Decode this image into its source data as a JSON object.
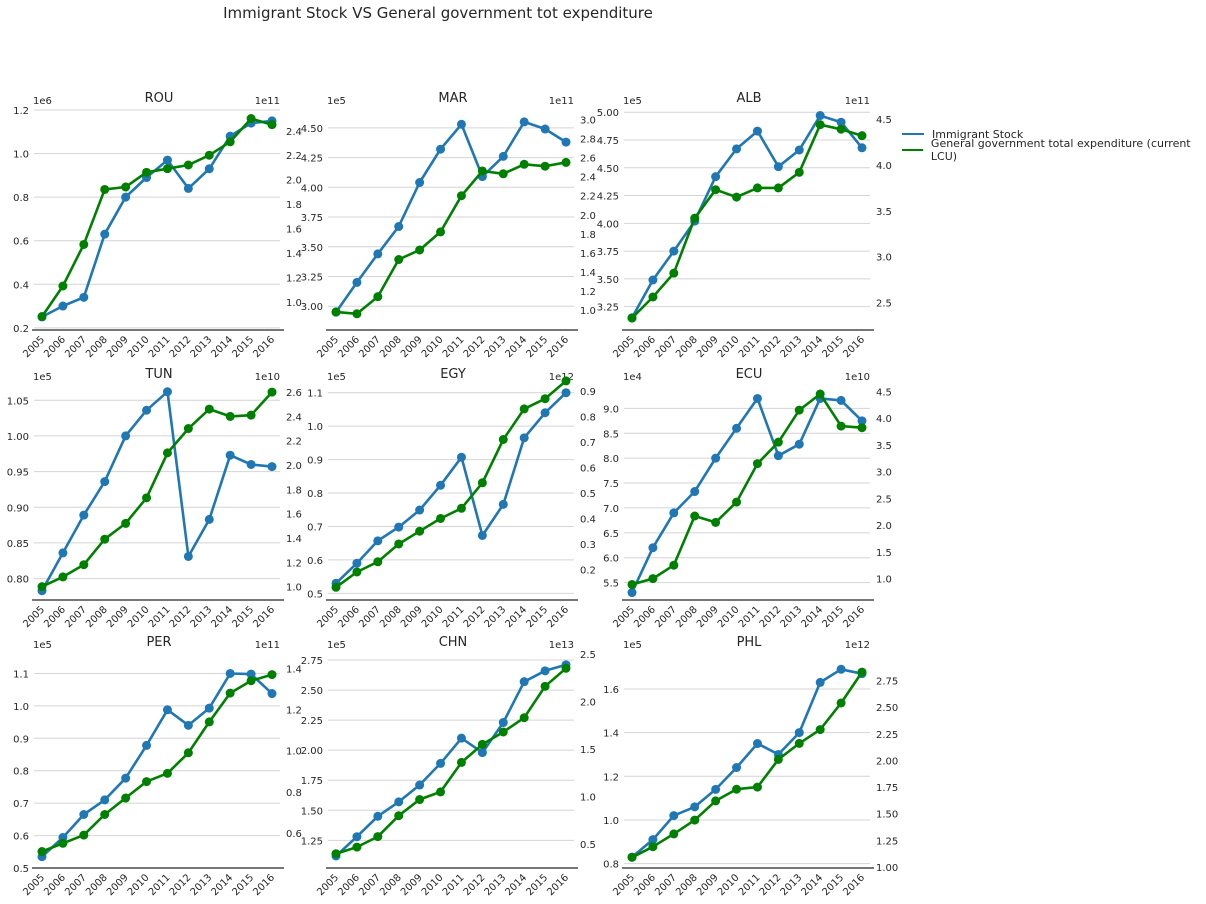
{
  "figure": {
    "title": "Immigrant Stock VS General government tot expenditure"
  },
  "legend": [
    {
      "label": "Immigrant Stock",
      "color": "#1f77b4"
    },
    {
      "label": "General government total expenditure (current LCU)",
      "color": "#008000"
    }
  ],
  "chart_data": [
    {
      "type": "line",
      "title": "ROU",
      "x": [
        2005,
        2006,
        2007,
        2008,
        2009,
        2010,
        2011,
        2012,
        2013,
        2014,
        2015,
        2016
      ],
      "left_axis": {
        "multiplier": "1e6",
        "ylim": [
          0.19,
          1.2
        ],
        "ticks": [
          "0.2",
          "0.4",
          "0.6",
          "0.8",
          "1.0",
          "1.2"
        ],
        "grid": true
      },
      "right_axis": {
        "multiplier": "1e11",
        "ylim": [
          0.77,
          2.57
        ],
        "ticks": [
          "1.0",
          "1.2",
          "1.4",
          "1.6",
          "1.8",
          "2.0",
          "2.2",
          "2.4"
        ],
        "grid": false
      },
      "series": [
        {
          "name": "Immigrant Stock",
          "axis": "left",
          "color": "#1f77b4",
          "values": [
            0.25,
            0.3,
            0.34,
            0.63,
            0.8,
            0.89,
            0.97,
            0.84,
            0.93,
            1.08,
            1.14,
            1.15
          ]
        },
        {
          "name": "General government total expenditure (current LCU)",
          "axis": "right",
          "color": "#008000",
          "values": [
            0.88,
            1.13,
            1.47,
            1.92,
            1.94,
            2.06,
            2.09,
            2.12,
            2.2,
            2.31,
            2.5,
            2.45
          ]
        }
      ]
    },
    {
      "type": "line",
      "title": "MAR",
      "x": [
        2005,
        2006,
        2007,
        2008,
        2009,
        2010,
        2011,
        2012,
        2013,
        2014,
        2015,
        2016
      ],
      "left_axis": {
        "multiplier": "1e5",
        "ylim": [
          2.8,
          4.65
        ],
        "ticks": [
          "3.00",
          "3.25",
          "3.50",
          "3.75",
          "4.00",
          "4.25",
          "4.50"
        ],
        "grid": true
      },
      "right_axis": {
        "multiplier": "1e11",
        "ylim": [
          0.79,
          3.1
        ],
        "ticks": [
          "1.0",
          "1.2",
          "1.4",
          "1.6",
          "1.8",
          "2.0",
          "2.2",
          "2.4",
          "2.6",
          "2.8",
          "3.0"
        ],
        "grid": false
      },
      "series": [
        {
          "name": "Immigrant Stock",
          "axis": "left",
          "color": "#1f77b4",
          "values": [
            2.95,
            3.2,
            3.44,
            3.67,
            4.04,
            4.32,
            4.53,
            4.09,
            4.26,
            4.55,
            4.49,
            4.38
          ]
        },
        {
          "name": "General government total expenditure (current LCU)",
          "axis": "right",
          "color": "#008000",
          "values": [
            0.98,
            0.96,
            1.14,
            1.53,
            1.63,
            1.82,
            2.2,
            2.46,
            2.43,
            2.53,
            2.51,
            2.55
          ]
        }
      ]
    },
    {
      "type": "line",
      "title": "ALB",
      "x": [
        2005,
        2006,
        2007,
        2008,
        2009,
        2010,
        2011,
        2012,
        2013,
        2014,
        2015,
        2016
      ],
      "left_axis": {
        "multiplier": "1e5",
        "ylim": [
          3.04,
          5.02
        ],
        "ticks": [
          "3.25",
          "3.50",
          "3.75",
          "4.00",
          "4.25",
          "4.50",
          "4.75",
          "5.00"
        ],
        "grid": true
      },
      "right_axis": {
        "multiplier": "1e11",
        "ylim": [
          2.2,
          4.6
        ],
        "ticks": [
          "2.5",
          "3.0",
          "3.5",
          "4.0",
          "4.5"
        ],
        "grid": false
      },
      "series": [
        {
          "name": "Immigrant Stock",
          "axis": "left",
          "color": "#1f77b4",
          "values": [
            3.15,
            3.49,
            3.75,
            4.02,
            4.42,
            4.67,
            4.83,
            4.51,
            4.66,
            4.97,
            4.91,
            4.68
          ]
        },
        {
          "name": "General government total expenditure (current LCU)",
          "axis": "right",
          "color": "#008000",
          "values": [
            2.33,
            2.56,
            2.82,
            3.42,
            3.73,
            3.65,
            3.75,
            3.75,
            3.92,
            4.44,
            4.39,
            4.32
          ]
        }
      ]
    },
    {
      "type": "line",
      "title": "TUN",
      "x": [
        2005,
        2006,
        2007,
        2008,
        2009,
        2010,
        2011,
        2012,
        2013,
        2014,
        2015,
        2016
      ],
      "left_axis": {
        "multiplier": "1e5",
        "ylim": [
          0.77,
          1.07
        ],
        "ticks": [
          "0.80",
          "0.85",
          "0.90",
          "0.95",
          "1.00",
          "1.05"
        ],
        "grid": true
      },
      "right_axis": {
        "multiplier": "1e10",
        "ylim": [
          0.89,
          2.65
        ],
        "ticks": [
          "1.0",
          "1.2",
          "1.4",
          "1.6",
          "1.8",
          "2.0",
          "2.2",
          "2.4",
          "2.6"
        ],
        "grid": false
      },
      "series": [
        {
          "name": "Immigrant Stock",
          "axis": "left",
          "color": "#1f77b4",
          "values": [
            0.783,
            0.836,
            0.889,
            0.936,
            1.0,
            1.036,
            1.062,
            0.831,
            0.883,
            0.973,
            0.96,
            0.957
          ]
        },
        {
          "name": "General government total expenditure (current LCU)",
          "axis": "right",
          "color": "#008000",
          "values": [
            1.0,
            1.08,
            1.18,
            1.39,
            1.52,
            1.73,
            2.1,
            2.3,
            2.46,
            2.4,
            2.41,
            2.6
          ]
        }
      ]
    },
    {
      "type": "line",
      "title": "EGY",
      "x": [
        2005,
        2006,
        2007,
        2008,
        2009,
        2010,
        2011,
        2012,
        2013,
        2014,
        2015,
        2016
      ],
      "left_axis": {
        "multiplier": "1e5",
        "ylim": [
          0.48,
          1.12
        ],
        "ticks": [
          "0.5",
          "0.6",
          "0.7",
          "0.8",
          "0.9",
          "1.0",
          "1.1"
        ],
        "grid": true
      },
      "right_axis": {
        "multiplier": "1e12",
        "ylim": [
          0.08,
          0.92
        ],
        "ticks": [
          "0.2",
          "0.3",
          "0.4",
          "0.5",
          "0.6",
          "0.7",
          "0.8",
          "0.9"
        ],
        "grid": false
      },
      "series": [
        {
          "name": "Immigrant Stock",
          "axis": "left",
          "color": "#1f77b4",
          "values": [
            0.53,
            0.59,
            0.657,
            0.698,
            0.749,
            0.823,
            0.907,
            0.673,
            0.766,
            0.965,
            1.04,
            1.1
          ]
        },
        {
          "name": "General government total expenditure (current LCU)",
          "axis": "right",
          "color": "#008000",
          "values": [
            0.13,
            0.19,
            0.23,
            0.3,
            0.35,
            0.4,
            0.44,
            0.54,
            0.71,
            0.83,
            0.87,
            0.94
          ]
        }
      ]
    },
    {
      "type": "line",
      "title": "ECU",
      "x": [
        2005,
        2006,
        2007,
        2008,
        2009,
        2010,
        2011,
        2012,
        2013,
        2014,
        2015,
        2016
      ],
      "left_axis": {
        "multiplier": "1e4",
        "ylim": [
          5.15,
          9.45
        ],
        "ticks": [
          "5.5",
          "6.0",
          "6.5",
          "7.0",
          "7.5",
          "8.0",
          "8.5",
          "9.0"
        ],
        "grid": true
      },
      "right_axis": {
        "multiplier": "1e10",
        "ylim": [
          0.6,
          4.6
        ],
        "ticks": [
          "1.0",
          "1.5",
          "2.0",
          "2.5",
          "3.0",
          "3.5",
          "4.0",
          "4.5"
        ],
        "grid": false
      },
      "series": [
        {
          "name": "Immigrant Stock",
          "axis": "left",
          "color": "#1f77b4",
          "values": [
            5.3,
            6.2,
            6.9,
            7.33,
            8.0,
            8.6,
            9.2,
            8.05,
            8.28,
            9.2,
            9.16,
            8.75
          ]
        },
        {
          "name": "General government total expenditure (current LCU)",
          "axis": "right",
          "color": "#008000",
          "values": [
            0.89,
            1.0,
            1.25,
            2.17,
            2.05,
            2.43,
            3.15,
            3.55,
            4.15,
            4.45,
            3.85,
            3.82
          ]
        }
      ]
    },
    {
      "type": "line",
      "title": "PER",
      "x": [
        2005,
        2006,
        2007,
        2008,
        2009,
        2010,
        2011,
        2012,
        2013,
        2014,
        2015,
        2016
      ],
      "left_axis": {
        "multiplier": "1e5",
        "ylim": [
          0.5,
          1.16
        ],
        "ticks": [
          "0.5",
          "0.6",
          "0.7",
          "0.8",
          "0.9",
          "1.0",
          "1.1"
        ],
        "grid": true
      },
      "right_axis": {
        "multiplier": "1e11",
        "ylim": [
          0.43,
          1.47
        ],
        "ticks": [
          "0.6",
          "0.8",
          "1.0",
          "1.2",
          "1.4"
        ],
        "grid": false
      },
      "series": [
        {
          "name": "Immigrant Stock",
          "axis": "left",
          "color": "#1f77b4",
          "values": [
            0.535,
            0.594,
            0.665,
            0.71,
            0.777,
            0.878,
            0.988,
            0.94,
            0.993,
            1.1,
            1.098,
            1.038
          ]
        },
        {
          "name": "General government total expenditure (current LCU)",
          "axis": "right",
          "color": "#008000",
          "values": [
            0.51,
            0.55,
            0.59,
            0.69,
            0.77,
            0.85,
            0.89,
            0.99,
            1.14,
            1.28,
            1.34,
            1.37
          ]
        }
      ]
    },
    {
      "type": "line",
      "title": "CHN",
      "x": [
        2005,
        2006,
        2007,
        2008,
        2009,
        2010,
        2011,
        2012,
        2013,
        2014,
        2015,
        2016
      ],
      "left_axis": {
        "multiplier": "1e5",
        "ylim": [
          1.02,
          2.8
        ],
        "ticks": [
          "1.25",
          "1.50",
          "1.75",
          "2.00",
          "2.25",
          "2.50",
          "2.75"
        ],
        "grid": true
      },
      "right_axis": {
        "multiplier": "1e13",
        "ylim": [
          0.25,
          2.5
        ],
        "ticks": [
          "0.5",
          "1.0",
          "1.5",
          "2.0",
          "2.5"
        ],
        "grid": false
      },
      "series": [
        {
          "name": "Immigrant Stock",
          "axis": "left",
          "color": "#1f77b4",
          "values": [
            1.12,
            1.28,
            1.45,
            1.57,
            1.71,
            1.89,
            2.1,
            1.98,
            2.23,
            2.57,
            2.66,
            2.71
          ]
        },
        {
          "name": "General government total expenditure (current LCU)",
          "axis": "right",
          "color": "#008000",
          "values": [
            0.4,
            0.47,
            0.58,
            0.8,
            0.97,
            1.05,
            1.36,
            1.55,
            1.68,
            1.83,
            2.16,
            2.35
          ]
        }
      ]
    },
    {
      "type": "line",
      "title": "PHL",
      "x": [
        2005,
        2006,
        2007,
        2008,
        2009,
        2010,
        2011,
        2012,
        2013,
        2014,
        2015,
        2016
      ],
      "left_axis": {
        "multiplier": "1e5",
        "ylim": [
          0.78,
          1.76
        ],
        "ticks": [
          "0.8",
          "1.0",
          "1.2",
          "1.4",
          "1.6"
        ],
        "grid": true
      },
      "right_axis": {
        "multiplier": "1e12",
        "ylim": [
          0.99,
          3.0
        ],
        "ticks": [
          "1.00",
          "1.25",
          "1.50",
          "1.75",
          "2.00",
          "2.25",
          "2.50",
          "2.75"
        ],
        "grid": false
      },
      "series": [
        {
          "name": "Immigrant Stock",
          "axis": "left",
          "color": "#1f77b4",
          "values": [
            0.83,
            0.91,
            1.02,
            1.06,
            1.14,
            1.24,
            1.35,
            1.3,
            1.4,
            1.63,
            1.69,
            1.67
          ]
        },
        {
          "name": "General government total expenditure (current LCU)",
          "axis": "right",
          "color": "#008000",
          "values": [
            1.09,
            1.19,
            1.31,
            1.44,
            1.62,
            1.73,
            1.75,
            2.01,
            2.16,
            2.29,
            2.54,
            2.83
          ]
        }
      ]
    }
  ]
}
